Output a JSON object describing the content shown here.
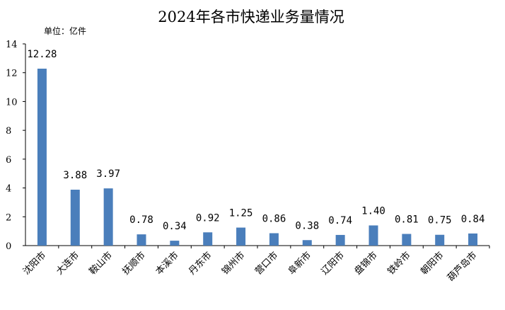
{
  "chart_data": {
    "type": "bar",
    "title": "2024年各市快递业务量情况",
    "unit_label": "单位：亿件",
    "categories": [
      "沈阳市",
      "大连市",
      "鞍山市",
      "抚顺市",
      "本溪市",
      "丹东市",
      "锦州市",
      "营口市",
      "阜新市",
      "辽阳市",
      "盘锦市",
      "铁岭市",
      "朝阳市",
      "葫芦岛市"
    ],
    "values": [
      12.28,
      3.88,
      3.97,
      0.78,
      0.34,
      0.92,
      1.25,
      0.86,
      0.38,
      0.74,
      1.4,
      0.81,
      0.75,
      0.84
    ],
    "value_labels": [
      "12.28",
      "3.88",
      "3.97",
      "0.78",
      "0.34",
      "0.92",
      "1.25",
      "0.86",
      "0.38",
      "0.74",
      "1.40",
      "0.81",
      "0.75",
      "0.84"
    ],
    "y_ticks": [
      "0",
      "2",
      "4",
      "6",
      "8",
      "10",
      "12",
      "14"
    ],
    "ylim": [
      0,
      14
    ],
    "bar_color": "#4a7ebb",
    "grid": false,
    "legend": "none"
  }
}
